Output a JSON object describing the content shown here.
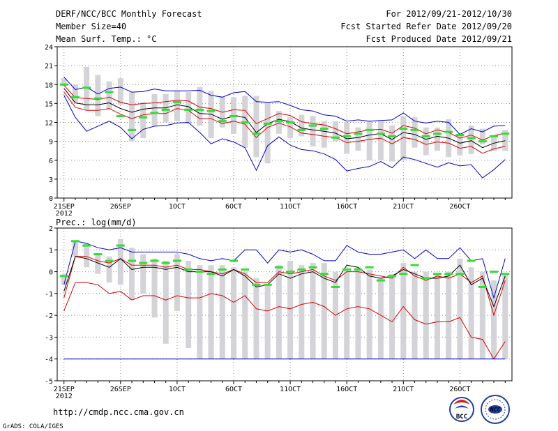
{
  "header": {
    "title": "DERF/NCC/BCC Monthly Forecast",
    "member_size": "Member Size=40",
    "variable": "Mean Surf. Temp.: °C",
    "period": "For 2012/09/21-2012/10/30",
    "start_date": "Fcst Started Refer Date 2012/09/20",
    "produced_date": "Fcst Produced Date 2012/09/21"
  },
  "footer": {
    "url": "http://cmdp.ncc.cma.gov.cn",
    "grads": "GrADS: COLA/IGES",
    "logo_left_text": "BCC",
    "logo_right_text": "NCC"
  },
  "colors": {
    "box": "#d3d3d8",
    "observed": "#33dd33",
    "mean": "#000000",
    "std_band": "#dd0000",
    "extremes": "#0000cc",
    "grid": "#888888"
  },
  "chart_data": [
    {
      "type": "line",
      "title": "Mean Surf. Temp.: °C",
      "x_tick_labels": [
        "21SEP",
        "26SEP",
        "1OCT",
        "6OCT",
        "11OCT",
        "16OCT",
        "21OCT",
        "26OCT"
      ],
      "x_tick_days": [
        0,
        5,
        10,
        15,
        20,
        25,
        30,
        35
      ],
      "x_sublabel": "2012",
      "xlim": [
        -0.6,
        39.6
      ],
      "ylim": [
        0,
        24
      ],
      "y_ticks": [
        0,
        3,
        6,
        9,
        12,
        15,
        18,
        21,
        24
      ],
      "days": [
        0,
        1,
        2,
        3,
        4,
        5,
        6,
        7,
        8,
        9,
        10,
        11,
        12,
        13,
        14,
        15,
        16,
        17,
        18,
        19,
        20,
        21,
        22,
        23,
        24,
        25,
        26,
        27,
        28,
        29,
        30,
        31,
        32,
        33,
        34,
        35,
        36,
        37,
        38,
        39
      ],
      "series": [
        {
          "name": "max",
          "color": "#0000cc",
          "values": [
            19.2,
            17.2,
            17.6,
            16.5,
            17.4,
            17.6,
            16.8,
            16.9,
            17.3,
            17.0,
            17.0,
            17.0,
            17.1,
            16.3,
            16.0,
            16.7,
            16.9,
            15.3,
            15.2,
            15.3,
            14.7,
            14.0,
            13.8,
            13.2,
            13.0,
            12.2,
            12.4,
            12.2,
            12.3,
            12.4,
            13.5,
            12.2,
            11.9,
            12.2,
            12.0,
            10.1,
            11.0,
            10.5,
            11.4,
            11.5
          ]
        },
        {
          "name": "upper",
          "color": "#dd0000",
          "values": [
            17.9,
            15.9,
            15.8,
            15.6,
            16.0,
            15.2,
            14.8,
            15.0,
            15.1,
            15.3,
            15.5,
            15.4,
            14.4,
            14.2,
            13.6,
            14.0,
            13.9,
            11.8,
            12.6,
            13.4,
            13.1,
            12.1,
            11.8,
            11.6,
            11.0,
            10.2,
            10.5,
            10.8,
            10.9,
            10.3,
            11.5,
            11.1,
            10.2,
            10.8,
            10.4,
            9.5,
            10.0,
            9.2,
            9.9,
            10.3
          ]
        },
        {
          "name": "mean",
          "color": "#000000",
          "values": [
            17.4,
            15.1,
            14.8,
            14.8,
            15.1,
            14.2,
            13.6,
            14.1,
            14.3,
            14.3,
            14.8,
            14.5,
            13.4,
            13.3,
            12.5,
            13.0,
            12.8,
            10.4,
            11.8,
            12.5,
            12.1,
            11.1,
            10.8,
            10.6,
            10.3,
            9.4,
            9.6,
            10.0,
            10.2,
            9.3,
            10.4,
            10.1,
            9.3,
            9.8,
            9.5,
            8.7,
            9.1,
            8.0,
            8.7,
            9.1
          ]
        },
        {
          "name": "lower",
          "color": "#dd0000",
          "values": [
            16.8,
            14.4,
            13.9,
            13.9,
            14.2,
            13.3,
            12.6,
            13.2,
            13.4,
            13.4,
            14.2,
            13.9,
            12.6,
            12.6,
            11.8,
            12.2,
            11.7,
            9.6,
            11.2,
            11.9,
            11.3,
            10.3,
            10.1,
            9.8,
            9.6,
            8.8,
            9.0,
            9.3,
            9.5,
            8.6,
            9.6,
            9.3,
            8.5,
            8.9,
            8.7,
            7.9,
            8.2,
            7.1,
            7.8,
            8.2
          ]
        },
        {
          "name": "min",
          "color": "#0000cc",
          "values": [
            16.3,
            12.8,
            10.6,
            11.4,
            12.2,
            11.2,
            9.4,
            10.9,
            11.4,
            11.5,
            11.9,
            12.0,
            10.4,
            8.6,
            9.4,
            8.9,
            8.0,
            4.4,
            8.3,
            9.7,
            8.4,
            7.7,
            7.5,
            7.0,
            6.1,
            4.3,
            4.7,
            5.0,
            5.8,
            4.8,
            6.5,
            6.1,
            5.5,
            4.9,
            5.6,
            5.1,
            5.3,
            3.2,
            4.5,
            6.1
          ]
        }
      ],
      "boxes": [
        [
          17.8,
          19.0
        ],
        [
          15.2,
          18.0
        ],
        [
          14.0,
          20.8
        ],
        [
          13.0,
          19.5
        ],
        [
          14.0,
          18.5
        ],
        [
          14.8,
          19.0
        ],
        [
          9.0,
          16.8
        ],
        [
          9.5,
          15.2
        ],
        [
          11.5,
          16.5
        ],
        [
          12.0,
          16.5
        ],
        [
          12.2,
          17.0
        ],
        [
          11.8,
          16.8
        ],
        [
          11.5,
          17.6
        ],
        [
          9.5,
          17.0
        ],
        [
          11.2,
          16.0
        ],
        [
          10.2,
          16.0
        ],
        [
          8.0,
          16.2
        ],
        [
          6.5,
          16.2
        ],
        [
          5.5,
          15.2
        ],
        [
          10.2,
          13.8
        ],
        [
          9.5,
          12.8
        ],
        [
          9.8,
          13.2
        ],
        [
          8.2,
          13.0
        ],
        [
          8.0,
          12.2
        ],
        [
          9.0,
          12.2
        ],
        [
          7.0,
          12.0
        ],
        [
          7.5,
          11.2
        ],
        [
          6.0,
          12.2
        ],
        [
          6.0,
          12.2
        ],
        [
          5.8,
          11.5
        ],
        [
          6.0,
          13.0
        ],
        [
          8.0,
          12.8
        ],
        [
          6.8,
          11.2
        ],
        [
          7.5,
          11.2
        ],
        [
          6.5,
          12.5
        ],
        [
          6.8,
          10.2
        ],
        [
          7.0,
          11.5
        ],
        [
          8.5,
          11.0
        ],
        [
          7.5,
          10.0
        ],
        [
          7.5,
          10.8
        ]
      ],
      "observed": [
        18.0,
        16.0,
        17.5,
        15.8,
        16.8,
        13.0,
        10.8,
        12.8,
        13.5,
        14.0,
        15.2,
        14.0,
        14.0,
        13.8,
        12.2,
        13.0,
        12.0,
        10.2,
        11.8,
        12.2,
        12.0,
        10.8,
        11.5,
        11.0,
        9.6,
        9.8,
        10.2,
        10.8,
        10.2,
        9.8,
        11.0,
        10.8,
        9.8,
        10.2,
        10.5,
        10.0,
        9.5,
        9.0,
        9.8,
        10.2
      ]
    },
    {
      "type": "line",
      "title": "Prec.: log(mm/d)",
      "x_tick_labels": [
        "21SEP",
        "26SEP",
        "1OCT",
        "6OCT",
        "11OCT",
        "16OCT",
        "21OCT",
        "26OCT"
      ],
      "x_tick_days": [
        0,
        5,
        10,
        15,
        20,
        25,
        30,
        35
      ],
      "x_sublabel": "2012",
      "xlim": [
        -0.6,
        39.6
      ],
      "ylim": [
        -5,
        2
      ],
      "y_ticks": [
        -5,
        -4,
        -3,
        -2,
        -1,
        0,
        1,
        2
      ],
      "days": [
        0,
        1,
        2,
        3,
        4,
        5,
        6,
        7,
        8,
        9,
        10,
        11,
        12,
        13,
        14,
        15,
        16,
        17,
        18,
        19,
        20,
        21,
        22,
        23,
        24,
        25,
        26,
        27,
        28,
        29,
        30,
        31,
        32,
        33,
        34,
        35,
        36,
        37,
        38,
        39
      ],
      "series": [
        {
          "name": "max",
          "color": "#0000cc",
          "values": [
            -0.6,
            1.4,
            1.3,
            1.1,
            1.0,
            1.1,
            0.9,
            0.9,
            0.9,
            0.9,
            0.9,
            0.8,
            0.6,
            0.5,
            0.6,
            0.5,
            1.0,
            1.0,
            0.4,
            1.0,
            0.9,
            1.0,
            0.8,
            0.5,
            0.5,
            1.2,
            0.9,
            0.8,
            0.8,
            0.9,
            1.0,
            0.6,
            1.0,
            0.6,
            0.6,
            1.1,
            0.5,
            0.6,
            -1.2,
            0.6
          ]
        },
        {
          "name": "upper",
          "color": "#dd0000",
          "values": [
            -1.2,
            0.7,
            0.7,
            0.5,
            0.4,
            0.6,
            0.3,
            0.3,
            0.3,
            0.2,
            0.3,
            0.1,
            0.1,
            0.0,
            -0.1,
            0.1,
            -0.1,
            -0.5,
            -0.5,
            0.0,
            -0.1,
            0.0,
            0.1,
            -0.2,
            -0.4,
            0.0,
            0.0,
            -0.1,
            -0.2,
            -0.3,
            0.2,
            -0.2,
            -0.4,
            -0.2,
            -0.3,
            -0.1,
            -0.5,
            -0.2,
            -2.0,
            -0.4
          ]
        },
        {
          "name": "mean",
          "color": "#000000",
          "values": [
            -0.9,
            0.7,
            0.6,
            0.4,
            0.2,
            0.6,
            0.1,
            0.2,
            0.2,
            0.1,
            0.2,
            0.0,
            0.0,
            0.0,
            -0.2,
            0.1,
            -0.2,
            -0.7,
            -0.6,
            -0.1,
            -0.3,
            -0.1,
            0.0,
            -0.3,
            -0.5,
            0.3,
            0.2,
            -0.2,
            -0.3,
            -0.2,
            0.1,
            -0.1,
            -0.3,
            -0.3,
            -0.2,
            0.3,
            -0.6,
            -0.3,
            -1.6,
            -0.2
          ]
        },
        {
          "name": "lower",
          "color": "#dd0000",
          "values": [
            -1.8,
            -0.5,
            -0.5,
            -0.6,
            -1.0,
            -0.9,
            -1.3,
            -1.1,
            -1.1,
            -1.3,
            -1.1,
            -1.2,
            -1.2,
            -1.0,
            -1.1,
            -1.4,
            -1.1,
            -1.7,
            -1.8,
            -1.6,
            -1.7,
            -1.5,
            -1.4,
            -1.6,
            -2.0,
            -1.7,
            -1.6,
            -1.7,
            -2.0,
            -2.3,
            -1.6,
            -2.2,
            -2.4,
            -2.3,
            -2.3,
            -2.1,
            -3.0,
            -3.1,
            -4.0,
            -3.2
          ]
        },
        {
          "name": "min",
          "color": "#0000cc",
          "values": [
            -4.0,
            -4.0,
            -4.0,
            -4.0,
            -4.0,
            -4.0,
            -4.0,
            -4.0,
            -4.0,
            -4.0,
            -4.0,
            -4.0,
            -4.0,
            -4.0,
            -4.0,
            -4.0,
            -4.0,
            -4.0,
            -4.0,
            -4.0,
            -4.0,
            -4.0,
            -4.0,
            -4.0,
            -4.0,
            -4.0,
            -4.0,
            -4.0,
            -4.0,
            -4.0,
            -4.0,
            -4.0,
            -4.0,
            -4.0,
            -4.0,
            -4.0,
            -4.0,
            -4.0,
            -4.0,
            -4.0
          ]
        }
      ],
      "boxes": [
        [
          -0.6,
          -0.1
        ],
        [
          0.7,
          1.4
        ],
        [
          0.2,
          1.3
        ],
        [
          -0.1,
          0.8
        ],
        [
          -0.5,
          0.7
        ],
        [
          -0.6,
          1.5
        ],
        [
          -1.3,
          1.1
        ],
        [
          -1.0,
          0.8
        ],
        [
          -2.1,
          0.6
        ],
        [
          -3.3,
          0.5
        ],
        [
          -1.8,
          0.8
        ],
        [
          -3.5,
          0.5
        ],
        [
          -4.0,
          0.3
        ],
        [
          -4.0,
          0.3
        ],
        [
          -4.0,
          0.3
        ],
        [
          -4.0,
          0.2
        ],
        [
          -4.0,
          0.0
        ],
        [
          -4.0,
          -0.3
        ],
        [
          -4.0,
          -0.6
        ],
        [
          -4.0,
          0.3
        ],
        [
          -4.0,
          0.5
        ],
        [
          -4.0,
          0.3
        ],
        [
          -4.0,
          0.4
        ],
        [
          -4.0,
          0.4
        ],
        [
          -4.0,
          0.0
        ],
        [
          -4.0,
          0.1
        ],
        [
          -4.0,
          0.2
        ],
        [
          -4.0,
          0.1
        ],
        [
          -4.0,
          -0.3
        ],
        [
          -4.0,
          -0.1
        ],
        [
          -4.0,
          0.4
        ],
        [
          -4.0,
          0.0
        ],
        [
          -4.0,
          0.0
        ],
        [
          -4.0,
          -0.1
        ],
        [
          -4.0,
          0.0
        ],
        [
          -4.0,
          0.6
        ],
        [
          -4.0,
          0.2
        ],
        [
          -4.0,
          0.0
        ],
        [
          -4.0,
          -0.4
        ],
        [
          -4.0,
          -0.1
        ]
      ],
      "observed": [
        -0.2,
        1.4,
        1.2,
        0.8,
        0.5,
        1.2,
        0.5,
        0.4,
        0.5,
        0.4,
        0.5,
        0.1,
        0.0,
        -0.1,
        0.1,
        0.5,
        0.1,
        -0.6,
        -0.6,
        0.2,
        0.0,
        0.1,
        0.2,
        -0.1,
        -0.7,
        0.1,
        0.1,
        0.2,
        -0.4,
        -0.2,
        -0.1,
        0.3,
        -0.3,
        -0.1,
        -0.1,
        -0.1,
        0.5,
        -0.7,
        0.0,
        -0.1
      ]
    }
  ]
}
